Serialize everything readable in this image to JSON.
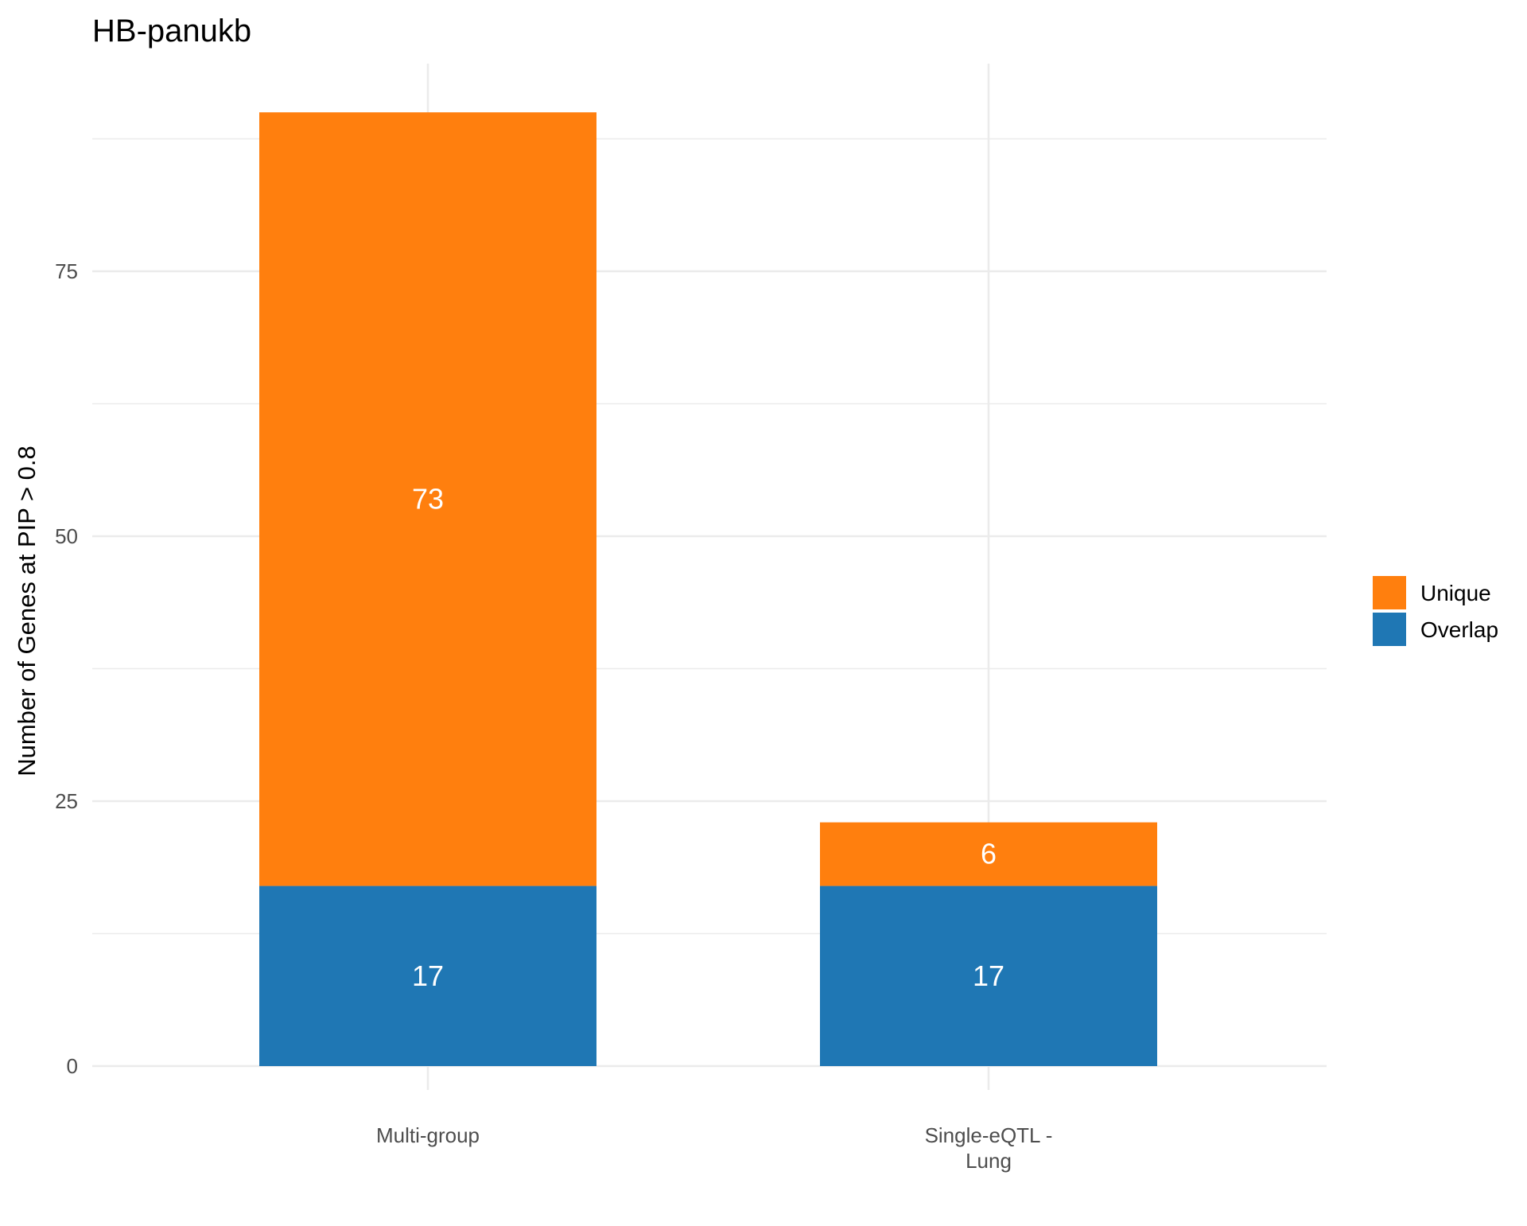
{
  "chart_data": {
    "type": "bar",
    "stacked": true,
    "title": "HB-panukb",
    "xlabel": "",
    "ylabel": "Number of Genes at PIP > 0.8",
    "categories": [
      "Multi-group",
      "Single-eQTL - Lung"
    ],
    "category_label_lines": [
      [
        "Multi-group"
      ],
      [
        "Single-eQTL -",
        "Lung"
      ]
    ],
    "series": [
      {
        "name": "Overlap",
        "values": [
          17,
          17
        ],
        "color": "#1f77b4"
      },
      {
        "name": "Unique",
        "values": [
          73,
          6
        ],
        "color": "#ff7f0e"
      }
    ],
    "ylim": [
      0,
      90
    ],
    "yticks": [
      0,
      25,
      50,
      75
    ],
    "grid": true,
    "legend": {
      "placement": "right",
      "entries": [
        "Unique",
        "Overlap"
      ]
    }
  }
}
